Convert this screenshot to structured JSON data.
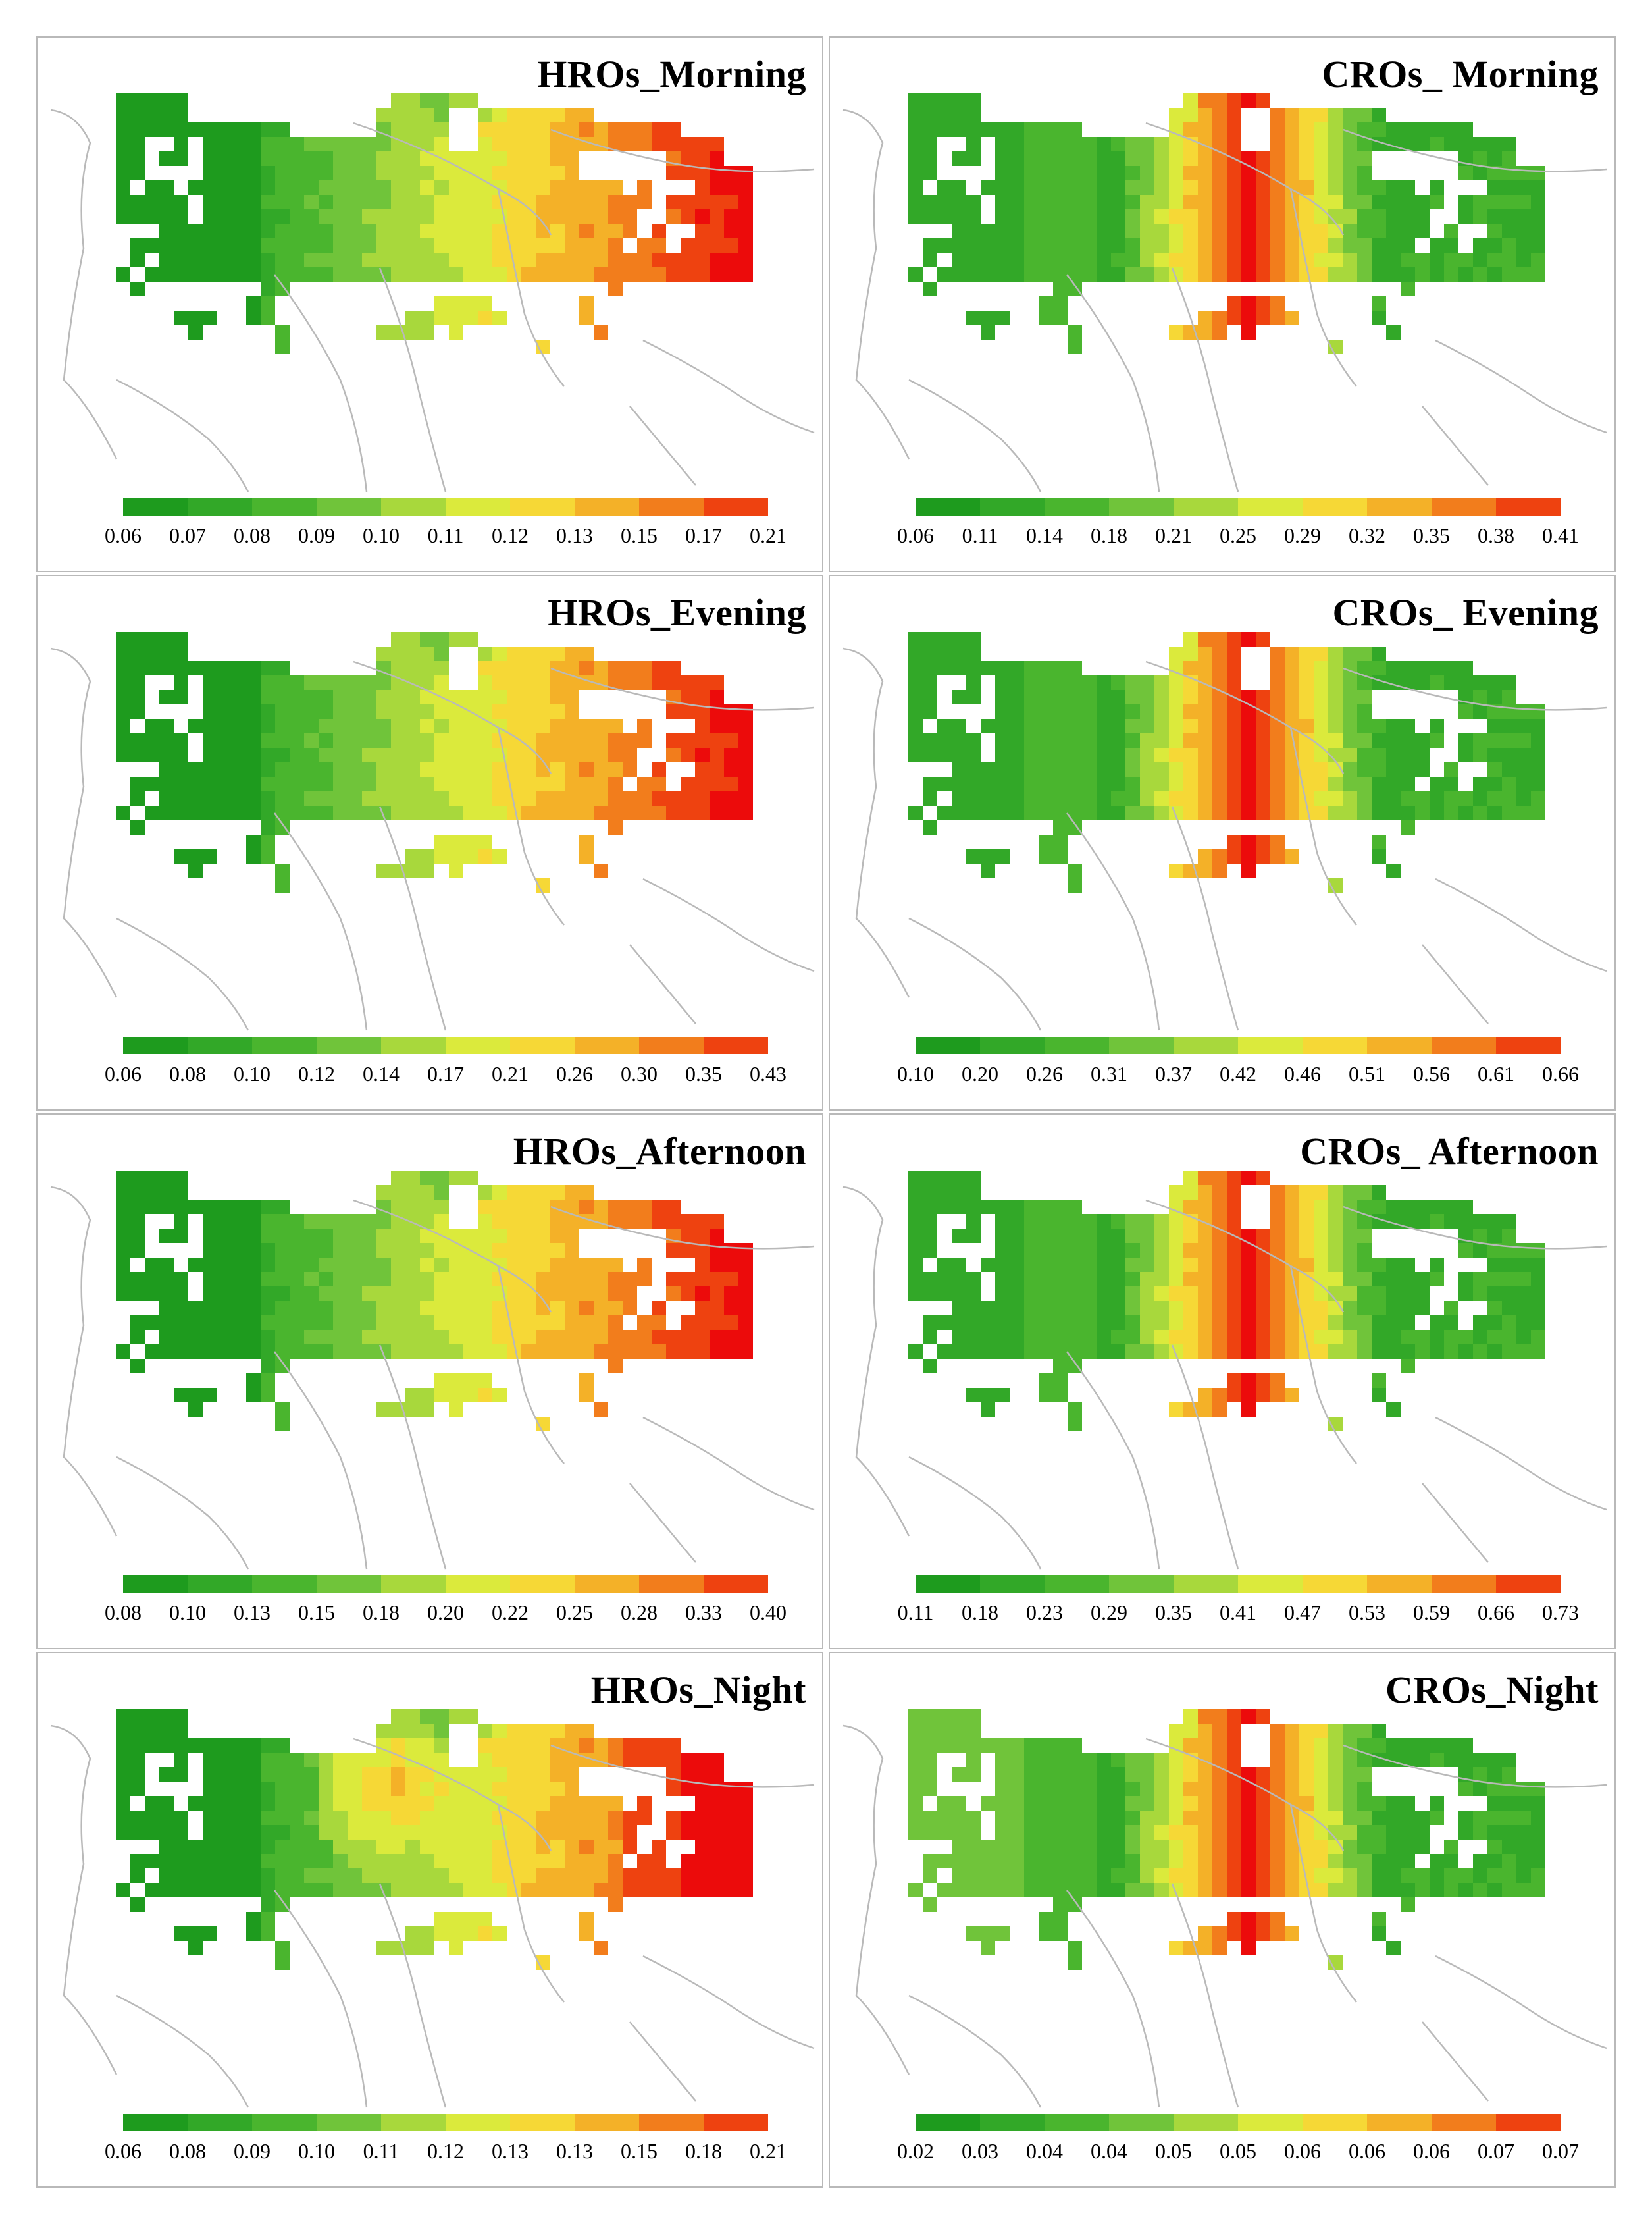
{
  "figure": {
    "panels": [
      {
        "id": "hros-morning",
        "title": "HROs_Morning",
        "variant": "hro",
        "scheme": "morning",
        "ticks": [
          "0.06",
          "0.07",
          "0.08",
          "0.09",
          "0.10",
          "0.11",
          "0.12",
          "0.13",
          "0.15",
          "0.17",
          "0.21"
        ]
      },
      {
        "id": "cros-morning",
        "title": "CROs_ Morning",
        "variant": "cro",
        "scheme": "morning",
        "ticks": [
          "0.06",
          "0.11",
          "0.14",
          "0.18",
          "0.21",
          "0.25",
          "0.29",
          "0.32",
          "0.35",
          "0.38",
          "0.41"
        ]
      },
      {
        "id": "hros-evening",
        "title": "HROs_Evening",
        "variant": "hro",
        "scheme": "evening",
        "ticks": [
          "0.06",
          "0.08",
          "0.10",
          "0.12",
          "0.14",
          "0.17",
          "0.21",
          "0.26",
          "0.30",
          "0.35",
          "0.43"
        ]
      },
      {
        "id": "cros-evening",
        "title": "CROs_ Evening",
        "variant": "cro",
        "scheme": "evening",
        "ticks": [
          "0.10",
          "0.20",
          "0.26",
          "0.31",
          "0.37",
          "0.42",
          "0.46",
          "0.51",
          "0.56",
          "0.61",
          "0.66"
        ]
      },
      {
        "id": "hros-afternoon",
        "title": "HROs_Afternoon",
        "variant": "hro",
        "scheme": "afternoon",
        "ticks": [
          "0.08",
          "0.10",
          "0.13",
          "0.15",
          "0.18",
          "0.20",
          "0.22",
          "0.25",
          "0.28",
          "0.33",
          "0.40"
        ]
      },
      {
        "id": "cros-afternoon",
        "title": "CROs_ Afternoon",
        "variant": "cro",
        "scheme": "afternoon",
        "ticks": [
          "0.11",
          "0.18",
          "0.23",
          "0.29",
          "0.35",
          "0.41",
          "0.47",
          "0.53",
          "0.59",
          "0.66",
          "0.73"
        ]
      },
      {
        "id": "hros-night",
        "title": "HROs_Night",
        "variant": "hro",
        "scheme": "night",
        "ticks": [
          "0.06",
          "0.08",
          "0.09",
          "0.10",
          "0.11",
          "0.12",
          "0.13",
          "0.13",
          "0.15",
          "0.18",
          "0.21"
        ]
      },
      {
        "id": "cros-night",
        "title": "CROs_Night",
        "variant": "cro",
        "scheme": "night",
        "ticks": [
          "0.02",
          "0.03",
          "0.04",
          "0.04",
          "0.05",
          "0.05",
          "0.06",
          "0.06",
          "0.06",
          "0.07",
          "0.07"
        ]
      }
    ],
    "palette": [
      "#1e9b1e",
      "#32a828",
      "#4ab52e",
      "#70c43a",
      "#a8d83c",
      "#dbea3c",
      "#f6d836",
      "#f4b128",
      "#f27d1c",
      "#ee4210",
      "#ec0b0b"
    ],
    "boundary_color": "#b9b9b9"
  }
}
